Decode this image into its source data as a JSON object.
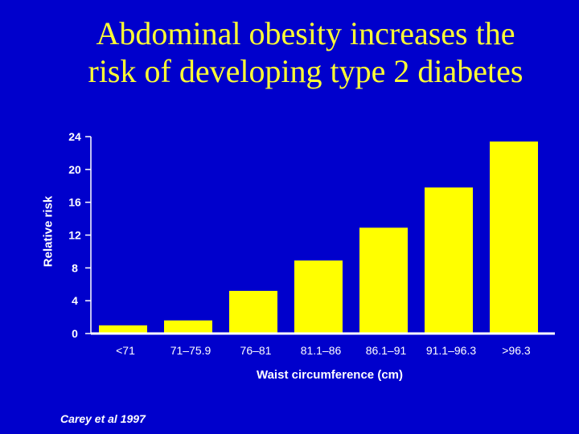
{
  "title_lines": [
    "Abdominal obesity increases the",
    "risk of developing type 2 diabetes"
  ],
  "source": "Carey et al 1997",
  "colors": {
    "background": "#0000cc",
    "bar": "#ffff00",
    "title": "#ffff33",
    "text": "#ffffff"
  },
  "chart_data": {
    "type": "bar",
    "title": "Abdominal obesity increases the risk of developing type 2 diabetes",
    "xlabel": "Waist circumference (cm)",
    "ylabel": "Relative risk",
    "categories": [
      "<71",
      "71–75.9",
      "76–81",
      "81.1–86",
      "86.1–91",
      "91.1–96.3",
      ">96.3"
    ],
    "values": [
      1.0,
      1.6,
      5.2,
      8.9,
      12.9,
      17.8,
      23.4
    ],
    "yticks": [
      0,
      4,
      8,
      12,
      16,
      20,
      24
    ],
    "ylim": [
      0,
      24
    ],
    "grid": false
  }
}
